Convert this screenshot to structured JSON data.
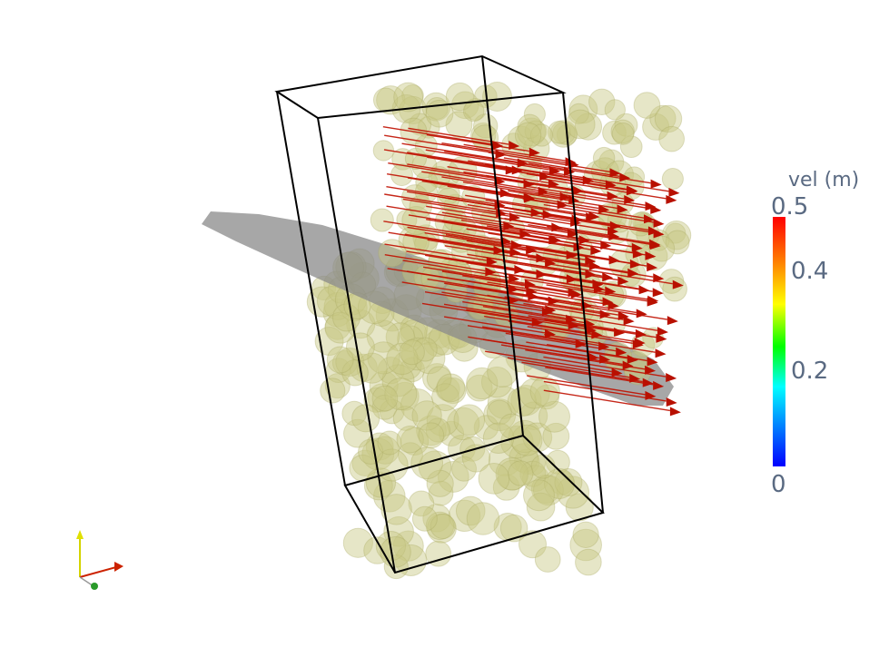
{
  "legend": {
    "title": "vel (m)",
    "ticks": [
      {
        "label": "0.5",
        "value": 0.5
      },
      {
        "label": "0.4",
        "value": 0.4
      },
      {
        "label": "0.2",
        "value": 0.2
      },
      {
        "label": "0",
        "value": 0
      }
    ],
    "colors": [
      "#ff0000",
      "#ffff00",
      "#00ff00",
      "#00ffff",
      "#0000ff"
    ]
  },
  "scene": {
    "particle_color": "#c8c882",
    "arrow_color": "#c01000",
    "plane_color": "#8a8a8a",
    "box_color": "#000000"
  }
}
